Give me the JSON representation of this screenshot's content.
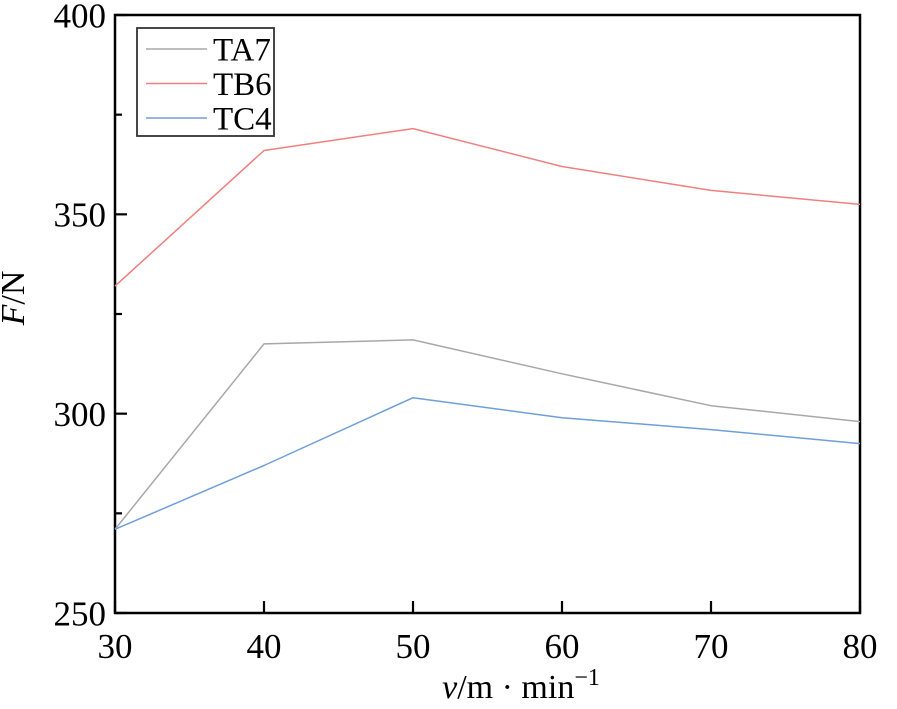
{
  "chart_data": {
    "type": "line",
    "title": "",
    "xlabel": {
      "display": "v/m · min⁻¹",
      "variable": "v",
      "unit": "/m · min",
      "superscript": "−1"
    },
    "ylabel": {
      "display": "F/N",
      "variable": "F",
      "unit": "/N"
    },
    "x": [
      30,
      40,
      50,
      60,
      70,
      80
    ],
    "series": [
      {
        "name": "TA7",
        "color": "#a8a8a8",
        "values": [
          271,
          317.5,
          318.5,
          310,
          302,
          298
        ]
      },
      {
        "name": "TB6",
        "color": "#f08080",
        "values": [
          332,
          366,
          371.5,
          362,
          356,
          352.5
        ]
      },
      {
        "name": "TC4",
        "color": "#6f9fd8",
        "values": [
          271,
          287,
          304,
          299,
          296,
          292.5
        ]
      }
    ],
    "xlim": [
      30,
      80
    ],
    "ylim": [
      250,
      400
    ],
    "x_ticks": [
      30,
      40,
      50,
      60,
      70,
      80
    ],
    "y_ticks": [
      250,
      300,
      350,
      400
    ],
    "y_minor_ticks": [
      275,
      325,
      375
    ],
    "grid": false,
    "legend_position": "top-left",
    "style": {
      "axis_color": "#000000",
      "legend_border_color": "#333333",
      "background": "#ffffff"
    }
  }
}
